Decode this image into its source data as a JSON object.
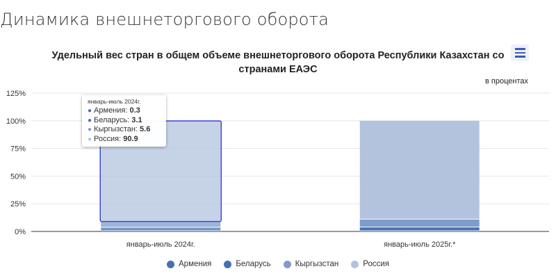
{
  "page_title": "Динамика внешнеторгового оборота",
  "menu_icon": "hamburger-menu-icon",
  "chart_data": {
    "type": "bar",
    "stacked": true,
    "title": "Удельный вес стран в общем объеме внешнеторгового оборота Республики Казахстан со странами ЕАЭС",
    "subtitle": "в процентах",
    "categories": [
      "январь-июль 2024г.",
      "январь-июль 2025г.*"
    ],
    "series": [
      {
        "name": "Армения",
        "color": "#4a6fae",
        "values": [
          0.3,
          0.3
        ]
      },
      {
        "name": "Беларусь",
        "color": "#4570b0",
        "values": [
          3.1,
          3.3
        ]
      },
      {
        "name": "Кыргызстан",
        "color": "#7e9ccc",
        "values": [
          5.6,
          7.2
        ]
      },
      {
        "name": "Россия",
        "color": "#b3c3de",
        "values": [
          90.9,
          89.2
        ]
      }
    ],
    "ylim": [
      0,
      125
    ],
    "yticks": [
      "0%",
      "25%",
      "50%",
      "75%",
      "100%",
      "125%"
    ],
    "grid": true,
    "legend": "bottom",
    "tooltip": {
      "header": "январь-июль 2024г.",
      "rows": [
        {
          "label": "Армения: ",
          "value": "0.3"
        },
        {
          "label": "Беларусь: ",
          "value": "3.1"
        },
        {
          "label": "Кыргызстан: ",
          "value": "5.6"
        },
        {
          "label": "Россия: ",
          "value": "90.9"
        }
      ]
    }
  }
}
